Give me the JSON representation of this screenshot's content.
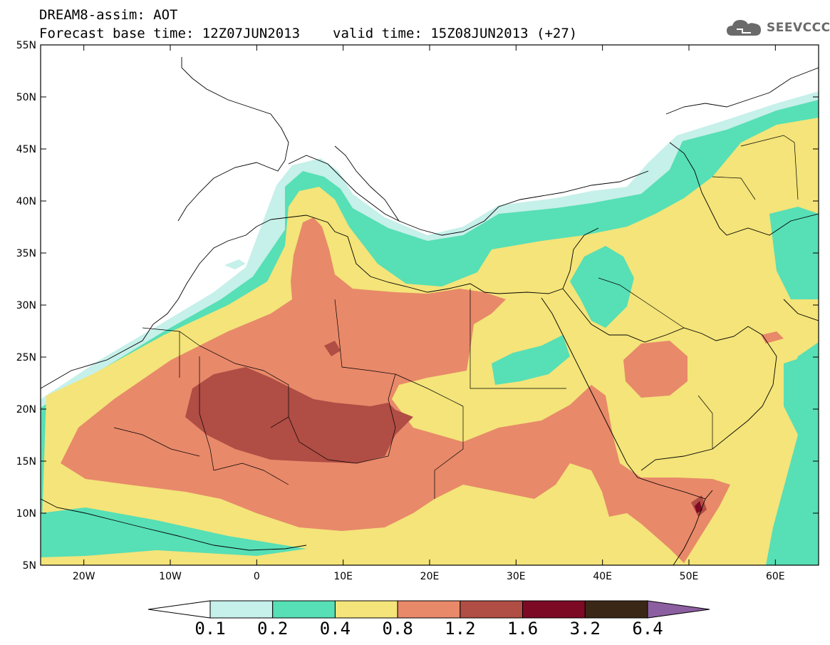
{
  "header": {
    "title": "DREAM8-assim: AOT",
    "base_time": "Forecast base time: 12Z07JUN2013",
    "valid_time": "valid time: 15Z08JUN2013 (+27)",
    "logo_text": "SEEVCCC"
  },
  "map": {
    "projection": "cylindrical",
    "lon_range": [
      -25,
      65
    ],
    "lat_range": [
      5,
      55
    ],
    "lat_labels": [
      "55N",
      "50N",
      "45N",
      "40N",
      "35N",
      "30N",
      "25N",
      "20N",
      "15N",
      "10N",
      "5N"
    ],
    "lon_labels": [
      "20W",
      "10W",
      "0",
      "10E",
      "20E",
      "30E",
      "40E",
      "50E",
      "60E"
    ]
  },
  "colorbar": {
    "thresholds": [
      "0.1",
      "0.2",
      "0.4",
      "0.8",
      "1.2",
      "1.6",
      "3.2",
      "6.4"
    ],
    "colors": [
      "#ffffff",
      "#c6f0ea",
      "#57dfb5",
      "#f4e479",
      "#e8896a",
      "#b04d44",
      "#7d0a24",
      "#3a2716",
      "#8c5fa0"
    ]
  }
}
